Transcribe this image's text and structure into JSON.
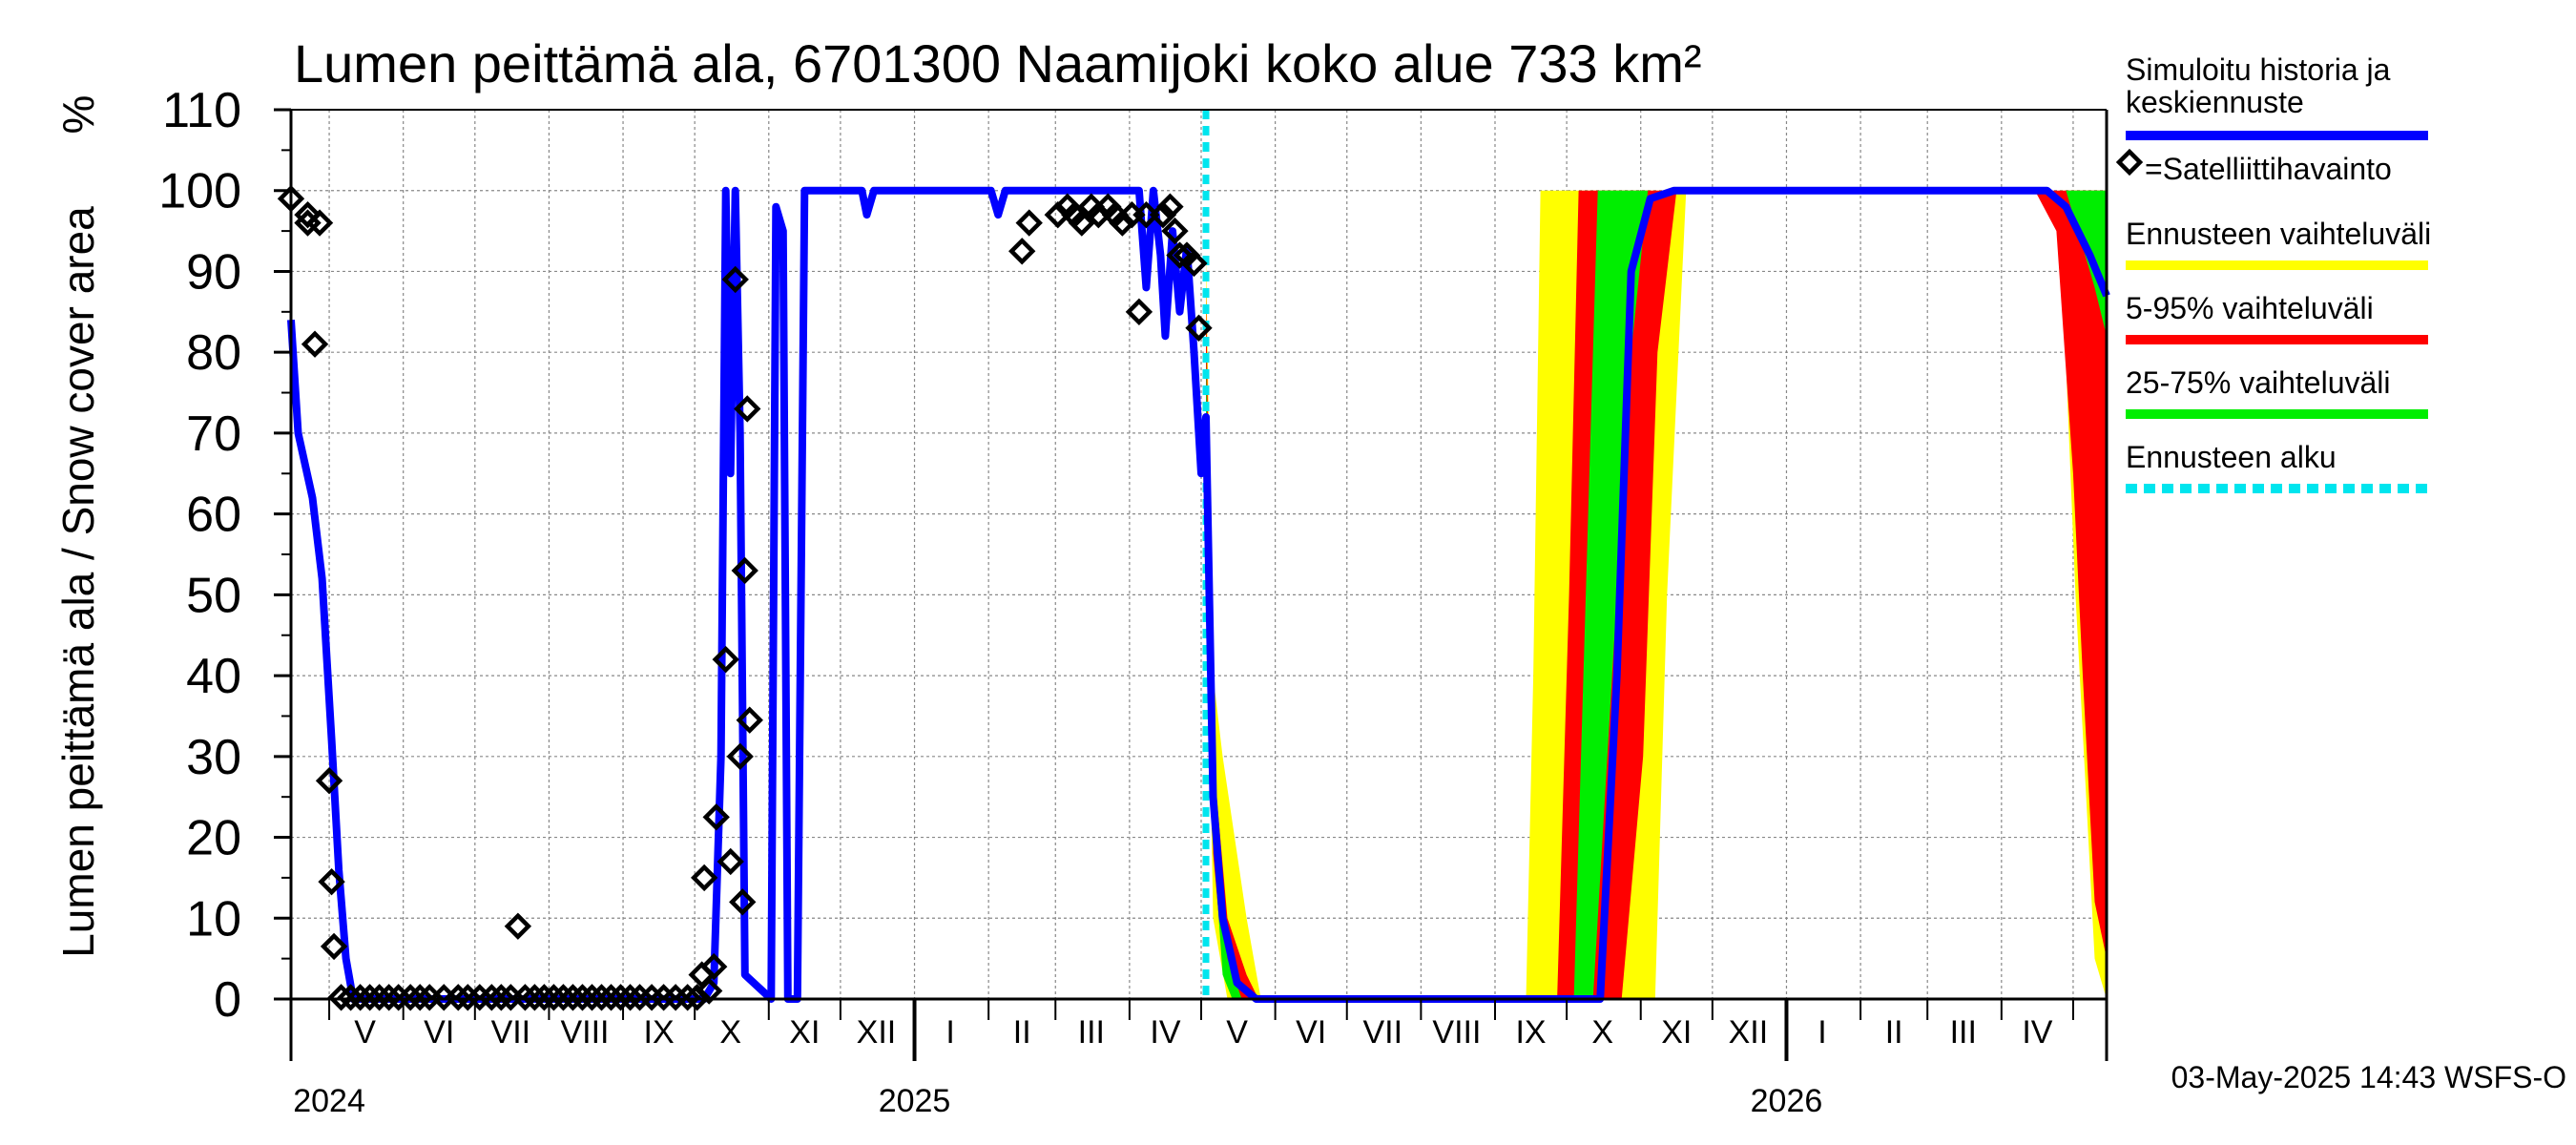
{
  "chart_data": {
    "type": "area",
    "title": "Lumen peittämä ala, 6701300 Naamijoki koko alue 733 km²",
    "ylabel": "Lumen peittämä ala / Snow cover area",
    "yunit": "%",
    "ylim": [
      0,
      110
    ],
    "yticks": [
      "0",
      "10",
      "20",
      "30",
      "40",
      "50",
      "60",
      "70",
      "80",
      "90",
      "100",
      "110"
    ],
    "grid": true,
    "xlim": [
      "2024-04-15",
      "2026-05-15"
    ],
    "month_labels": [
      {
        "label": "V",
        "date": "2024-05-16"
      },
      {
        "label": "VI",
        "date": "2024-06-16"
      },
      {
        "label": "VII",
        "date": "2024-07-16"
      },
      {
        "label": "VIII",
        "date": "2024-08-16"
      },
      {
        "label": "IX",
        "date": "2024-09-16"
      },
      {
        "label": "X",
        "date": "2024-10-16"
      },
      {
        "label": "XI",
        "date": "2024-11-16"
      },
      {
        "label": "XII",
        "date": "2024-12-16"
      },
      {
        "label": "I",
        "date": "2025-01-16"
      },
      {
        "label": "II",
        "date": "2025-02-15"
      },
      {
        "label": "III",
        "date": "2025-03-16"
      },
      {
        "label": "IV",
        "date": "2025-04-16"
      },
      {
        "label": "V",
        "date": "2025-05-16"
      },
      {
        "label": "VI",
        "date": "2025-06-16"
      },
      {
        "label": "VII",
        "date": "2025-07-16"
      },
      {
        "label": "VIII",
        "date": "2025-08-16"
      },
      {
        "label": "IX",
        "date": "2025-09-16"
      },
      {
        "label": "X",
        "date": "2025-10-16"
      },
      {
        "label": "XI",
        "date": "2025-11-16"
      },
      {
        "label": "XII",
        "date": "2025-12-16"
      },
      {
        "label": "I",
        "date": "2026-01-16"
      },
      {
        "label": "II",
        "date": "2026-02-15"
      },
      {
        "label": "III",
        "date": "2026-03-16"
      },
      {
        "label": "IV",
        "date": "2026-04-16"
      }
    ],
    "year_labels": [
      {
        "label": "2024",
        "date": "2024-05-01"
      },
      {
        "label": "2025",
        "date": "2025-01-01"
      },
      {
        "label": "2026",
        "date": "2026-01-01"
      }
    ],
    "forecast_start": "2025-05-03",
    "series": [
      {
        "name": "Simuloitu historia ja keskiennuste",
        "color": "#0000ff",
        "points": [
          [
            "2024-04-15",
            84
          ],
          [
            "2024-04-18",
            70
          ],
          [
            "2024-04-24",
            62
          ],
          [
            "2024-04-28",
            52
          ],
          [
            "2024-05-02",
            32
          ],
          [
            "2024-05-05",
            16
          ],
          [
            "2024-05-08",
            5
          ],
          [
            "2024-05-11",
            0
          ],
          [
            "2024-10-05",
            0
          ],
          [
            "2024-10-09",
            2
          ],
          [
            "2024-10-12",
            30
          ],
          [
            "2024-10-14",
            100
          ],
          [
            "2024-10-16",
            65
          ],
          [
            "2024-10-18",
            100
          ],
          [
            "2024-10-20",
            70
          ],
          [
            "2024-10-22",
            3
          ],
          [
            "2024-11-02",
            0
          ],
          [
            "2024-11-04",
            98
          ],
          [
            "2024-11-07",
            95
          ],
          [
            "2024-11-09",
            0
          ],
          [
            "2024-11-13",
            0
          ],
          [
            "2024-11-16",
            100
          ],
          [
            "2024-12-10",
            100
          ],
          [
            "2024-12-12",
            97
          ],
          [
            "2024-12-15",
            100
          ],
          [
            "2025-02-02",
            100
          ],
          [
            "2025-02-05",
            97
          ],
          [
            "2025-02-08",
            100
          ],
          [
            "2025-04-05",
            100
          ],
          [
            "2025-04-08",
            88
          ],
          [
            "2025-04-11",
            100
          ],
          [
            "2025-04-14",
            92
          ],
          [
            "2025-04-16",
            82
          ],
          [
            "2025-04-19",
            95
          ],
          [
            "2025-04-22",
            85
          ],
          [
            "2025-04-25",
            93
          ],
          [
            "2025-04-28",
            80
          ],
          [
            "2025-05-01",
            65
          ],
          [
            "2025-05-03",
            72
          ],
          [
            "2025-05-06",
            25
          ],
          [
            "2025-05-10",
            10
          ],
          [
            "2025-05-16",
            2
          ],
          [
            "2025-05-24",
            0
          ],
          [
            "2025-10-15",
            0
          ],
          [
            "2025-10-22",
            40
          ],
          [
            "2025-10-28",
            90
          ],
          [
            "2025-11-05",
            99
          ],
          [
            "2025-11-15",
            100
          ],
          [
            "2026-04-20",
            100
          ],
          [
            "2026-04-28",
            98
          ],
          [
            "2026-05-08",
            92
          ],
          [
            "2026-05-15",
            87
          ]
        ]
      },
      {
        "name": "=Satelliittihavainto",
        "marker": "diamond",
        "color": "#000000",
        "points": [
          [
            "2024-04-15",
            99
          ],
          [
            "2024-04-22",
            97
          ],
          [
            "2024-04-22",
            96
          ],
          [
            "2024-04-25",
            81
          ],
          [
            "2024-04-27",
            96
          ],
          [
            "2024-05-01",
            27
          ],
          [
            "2024-05-02",
            14.5
          ],
          [
            "2024-05-03",
            6.5
          ],
          [
            "2024-05-06",
            0.2
          ],
          [
            "2024-05-10",
            0.2
          ],
          [
            "2024-05-14",
            0.2
          ],
          [
            "2024-05-18",
            0.2
          ],
          [
            "2024-05-22",
            0.2
          ],
          [
            "2024-05-26",
            0.2
          ],
          [
            "2024-05-30",
            0.2
          ],
          [
            "2024-06-04",
            0.2
          ],
          [
            "2024-06-08",
            0.2
          ],
          [
            "2024-06-12",
            0.2
          ],
          [
            "2024-06-18",
            0.2
          ],
          [
            "2024-06-24",
            0.2
          ],
          [
            "2024-06-28",
            0.2
          ],
          [
            "2024-07-03",
            0.2
          ],
          [
            "2024-07-08",
            0.2
          ],
          [
            "2024-07-12",
            0.2
          ],
          [
            "2024-07-16",
            0.2
          ],
          [
            "2024-07-19",
            9
          ],
          [
            "2024-07-22",
            0.2
          ],
          [
            "2024-07-26",
            0.2
          ],
          [
            "2024-07-30",
            0.2
          ],
          [
            "2024-08-03",
            0.2
          ],
          [
            "2024-08-07",
            0.2
          ],
          [
            "2024-08-11",
            0.2
          ],
          [
            "2024-08-15",
            0.2
          ],
          [
            "2024-08-19",
            0.2
          ],
          [
            "2024-08-23",
            0.2
          ],
          [
            "2024-08-27",
            0.2
          ],
          [
            "2024-08-31",
            0.2
          ],
          [
            "2024-09-04",
            0.2
          ],
          [
            "2024-09-08",
            0.2
          ],
          [
            "2024-09-13",
            0.2
          ],
          [
            "2024-09-18",
            0.2
          ],
          [
            "2024-09-23",
            0.2
          ],
          [
            "2024-09-28",
            0.2
          ],
          [
            "2024-10-02",
            0.2
          ],
          [
            "2024-10-04",
            3
          ],
          [
            "2024-10-05",
            15
          ],
          [
            "2024-10-07",
            1
          ],
          [
            "2024-10-09",
            4
          ],
          [
            "2024-10-10",
            22.5
          ],
          [
            "2024-10-14",
            42
          ],
          [
            "2024-10-16",
            17
          ],
          [
            "2024-10-18",
            89
          ],
          [
            "2024-10-20",
            30
          ],
          [
            "2024-10-21",
            12
          ],
          [
            "2024-10-22",
            53
          ],
          [
            "2024-10-23",
            73
          ],
          [
            "2024-10-24",
            34.5
          ],
          [
            "2025-02-15",
            92.5
          ],
          [
            "2025-02-18",
            96
          ],
          [
            "2025-03-02",
            97
          ],
          [
            "2025-03-06",
            98
          ],
          [
            "2025-03-09",
            97
          ],
          [
            "2025-03-12",
            96
          ],
          [
            "2025-03-16",
            98
          ],
          [
            "2025-03-19",
            97
          ],
          [
            "2025-03-23",
            98
          ],
          [
            "2025-03-26",
            97
          ],
          [
            "2025-03-29",
            96
          ],
          [
            "2025-04-02",
            97
          ],
          [
            "2025-04-05",
            85
          ],
          [
            "2025-04-08",
            97
          ],
          [
            "2025-04-15",
            97
          ],
          [
            "2025-04-18",
            98
          ],
          [
            "2025-04-20",
            95
          ],
          [
            "2025-04-22",
            92
          ],
          [
            "2025-04-25",
            92
          ],
          [
            "2025-04-28",
            91
          ],
          [
            "2025-04-30",
            83
          ]
        ]
      }
    ],
    "bands": [
      {
        "name": "Ennusteen vaihteluväli",
        "color": "#ffff00",
        "upper": [
          [
            "2025-05-03",
            92
          ],
          [
            "2025-05-06",
            40
          ],
          [
            "2025-05-10",
            30
          ],
          [
            "2025-05-20",
            10
          ],
          [
            "2025-05-26",
            0
          ],
          [
            "2025-09-14",
            0
          ],
          [
            "2025-09-17",
            40
          ],
          [
            "2025-09-20",
            100
          ],
          [
            "2026-05-15",
            100
          ]
        ],
        "lower": [
          [
            "2025-05-03",
            60
          ],
          [
            "2025-05-06",
            10
          ],
          [
            "2025-05-12",
            0
          ],
          [
            "2025-11-07",
            0
          ],
          [
            "2025-11-12",
            50
          ],
          [
            "2025-11-20",
            100
          ],
          [
            "2026-04-25",
            100
          ],
          [
            "2026-05-02",
            50
          ],
          [
            "2026-05-10",
            5
          ],
          [
            "2026-05-15",
            0
          ]
        ]
      },
      {
        "name": "5-95% vaihteluväli",
        "color": "#ff0000",
        "upper": [
          [
            "2025-05-03",
            88
          ],
          [
            "2025-05-06",
            30
          ],
          [
            "2025-05-12",
            10
          ],
          [
            "2025-05-20",
            3
          ],
          [
            "2025-05-25",
            0
          ],
          [
            "2025-09-27",
            0
          ],
          [
            "2025-10-02",
            50
          ],
          [
            "2025-10-06",
            100
          ],
          [
            "2026-05-15",
            100
          ]
        ],
        "lower": [
          [
            "2025-05-03",
            62
          ],
          [
            "2025-05-06",
            18
          ],
          [
            "2025-05-10",
            5
          ],
          [
            "2025-05-15",
            0
          ],
          [
            "2025-10-24",
            0
          ],
          [
            "2025-11-02",
            30
          ],
          [
            "2025-11-08",
            80
          ],
          [
            "2025-11-16",
            100
          ],
          [
            "2026-04-15",
            100
          ],
          [
            "2026-04-24",
            95
          ],
          [
            "2026-05-01",
            65
          ],
          [
            "2026-05-05",
            40
          ],
          [
            "2026-05-10",
            12
          ],
          [
            "2026-05-15",
            5
          ]
        ]
      },
      {
        "name": "25-75% vaihteluväli",
        "color": "#00ee00",
        "upper": [
          [
            "2025-05-03",
            80
          ],
          [
            "2025-05-06",
            25
          ],
          [
            "2025-05-12",
            5
          ],
          [
            "2025-05-18",
            0
          ],
          [
            "2025-10-04",
            0
          ],
          [
            "2025-10-10",
            60
          ],
          [
            "2025-10-14",
            100
          ],
          [
            "2026-05-15",
            100
          ]
        ],
        "lower": [
          [
            "2025-05-03",
            68
          ],
          [
            "2025-05-06",
            20
          ],
          [
            "2025-05-10",
            3
          ],
          [
            "2025-05-14",
            0
          ],
          [
            "2025-10-12",
            0
          ],
          [
            "2025-10-20",
            40
          ],
          [
            "2025-10-28",
            80
          ],
          [
            "2025-11-04",
            100
          ],
          [
            "2026-04-28",
            100
          ],
          [
            "2026-05-05",
            93
          ],
          [
            "2026-05-10",
            88
          ],
          [
            "2026-05-15",
            82
          ]
        ]
      }
    ],
    "legend": [
      {
        "label": "Simuloitu historia ja keskiennuste",
        "color": "#0000ff",
        "kind": "line"
      },
      {
        "label": "=Satelliittihavainto",
        "color": "#000000",
        "kind": "diamond"
      },
      {
        "label": "Ennusteen vaihteluväli",
        "color": "#ffff00",
        "kind": "line"
      },
      {
        "label": "5-95% vaihteluväli",
        "color": "#ff0000",
        "kind": "line"
      },
      {
        "label": "25-75% vaihteluväli",
        "color": "#00ee00",
        "kind": "line"
      },
      {
        "label": "Ennusteen alku",
        "color": "#00e5ee",
        "kind": "dashed"
      }
    ],
    "legend_position": "right",
    "footer": "03-May-2025 14:43 WSFS-O"
  }
}
